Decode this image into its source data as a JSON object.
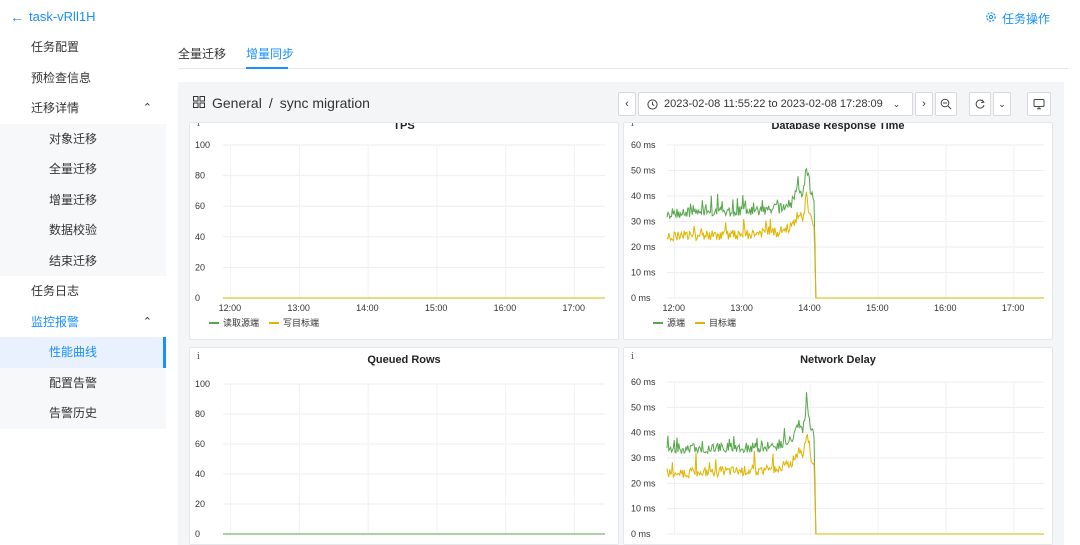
{
  "header": {
    "task_name": "task-vRll1H",
    "task_ops": "任务操作"
  },
  "sidebar": {
    "items": [
      {
        "label": "任务配置",
        "level": 0
      },
      {
        "label": "预检查信息",
        "level": 0
      },
      {
        "label": "迁移详情",
        "level": 0,
        "expanded": true
      },
      {
        "label": "对象迁移",
        "level": 1
      },
      {
        "label": "全量迁移",
        "level": 1
      },
      {
        "label": "增量迁移",
        "level": 1
      },
      {
        "label": "数据校验",
        "level": 1
      },
      {
        "label": "结束迁移",
        "level": 1
      },
      {
        "label": "任务日志",
        "level": 0
      },
      {
        "label": "监控报警",
        "level": 0,
        "expanded": true,
        "highlighted": true
      },
      {
        "label": "性能曲线",
        "level": 1,
        "active": true
      },
      {
        "label": "配置告警",
        "level": 1
      },
      {
        "label": "告警历史",
        "level": 1
      }
    ]
  },
  "tabs": [
    {
      "label": "全量迁移",
      "active": false
    },
    {
      "label": "增量同步",
      "active": true
    }
  ],
  "dashboard": {
    "folder": "General",
    "separator": "/",
    "name": "sync migration",
    "time_range": "2023-02-08 11:55:22 to 2023-02-08 17:28:09"
  },
  "colors": {
    "accent": "#1890ff",
    "green": "#56a64b",
    "yellow": "#e0b400"
  },
  "chart_data": [
    {
      "type": "line",
      "title": "TPS",
      "x_ticks": [
        "12:00",
        "13:00",
        "14:00",
        "15:00",
        "16:00",
        "17:00"
      ],
      "y_ticks": [
        "0",
        "20",
        "40",
        "60",
        "80",
        "100"
      ],
      "ylim": [
        0,
        100
      ],
      "series": [
        {
          "name": "读取源端",
          "color": "#56a64b",
          "values": [
            [
              0,
              0
            ],
            [
              1,
              0
            ]
          ]
        },
        {
          "name": "写目标端",
          "color": "#e0b400",
          "values": [
            [
              0,
              0
            ],
            [
              1,
              0
            ]
          ]
        }
      ]
    },
    {
      "type": "line",
      "title": "Database Response Time",
      "x_ticks": [
        "12:00",
        "13:00",
        "14:00",
        "15:00",
        "16:00",
        "17:00"
      ],
      "y_ticks": [
        "0 ms",
        "10 ms",
        "20 ms",
        "30 ms",
        "40 ms",
        "50 ms",
        "60 ms"
      ],
      "ylim": [
        0,
        60
      ],
      "series": [
        {
          "name": "源端",
          "color": "#56a64b",
          "values": [
            [
              0,
              33
            ],
            [
              0.12,
              34
            ],
            [
              0.22,
              34
            ],
            [
              0.3,
              35
            ],
            [
              0.33,
              37
            ],
            [
              0.35,
              44
            ],
            [
              0.36,
              40
            ],
            [
              0.37,
              52
            ],
            [
              0.38,
              42
            ],
            [
              0.39,
              38
            ],
            [
              0.395,
              0
            ],
            [
              1,
              0
            ]
          ]
        },
        {
          "name": "目标端",
          "color": "#e0b400",
          "values": [
            [
              0,
              24
            ],
            [
              0.12,
              24.5
            ],
            [
              0.22,
              25
            ],
            [
              0.3,
              26
            ],
            [
              0.33,
              28
            ],
            [
              0.35,
              33
            ],
            [
              0.36,
              30
            ],
            [
              0.37,
              40
            ],
            [
              0.38,
              31
            ],
            [
              0.39,
              28
            ],
            [
              0.395,
              0
            ],
            [
              1,
              0
            ]
          ]
        }
      ]
    },
    {
      "type": "line",
      "title": "Queued Rows",
      "y_ticks": [
        "0",
        "20",
        "40",
        "60",
        "80",
        "100"
      ],
      "ylim": [
        0,
        100
      ],
      "series": [
        {
          "color": "#56a64b",
          "values": [
            [
              0,
              0
            ],
            [
              1,
              0
            ]
          ]
        }
      ]
    },
    {
      "type": "line",
      "title": "Network Delay",
      "y_ticks": [
        "0 ms",
        "10 ms",
        "20 ms",
        "30 ms",
        "40 ms",
        "50 ms",
        "60 ms"
      ],
      "ylim": [
        0,
        60
      ],
      "series": [
        {
          "color": "#56a64b",
          "values": [
            [
              0,
              33
            ],
            [
              0.12,
              34
            ],
            [
              0.22,
              34
            ],
            [
              0.3,
              35
            ],
            [
              0.33,
              37
            ],
            [
              0.35,
              44
            ],
            [
              0.36,
              40
            ],
            [
              0.37,
              52
            ],
            [
              0.38,
              42
            ],
            [
              0.39,
              38
            ],
            [
              0.395,
              0
            ],
            [
              1,
              0
            ]
          ]
        },
        {
          "color": "#e0b400",
          "values": [
            [
              0,
              24
            ],
            [
              0.12,
              24.5
            ],
            [
              0.22,
              25
            ],
            [
              0.3,
              26
            ],
            [
              0.33,
              28
            ],
            [
              0.35,
              33
            ],
            [
              0.36,
              30
            ],
            [
              0.37,
              40
            ],
            [
              0.38,
              31
            ],
            [
              0.39,
              28
            ],
            [
              0.395,
              0
            ],
            [
              1,
              0
            ]
          ]
        }
      ]
    }
  ]
}
